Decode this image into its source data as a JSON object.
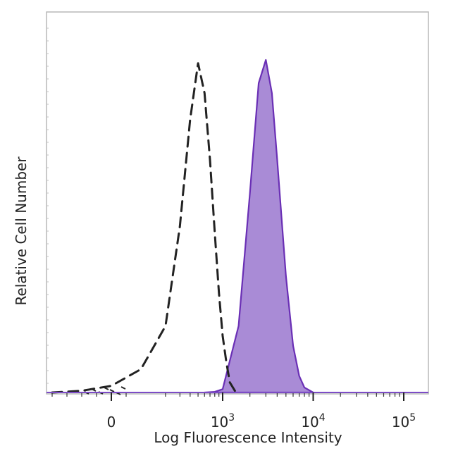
{
  "chart_data": {
    "type": "area",
    "title": "",
    "xlabel": "Log Fluorescence Intensity",
    "ylabel": "Relative Cell Number",
    "x_scale": "biexponential",
    "xlim": [
      -200,
      200000
    ],
    "ylim": [
      0,
      1
    ],
    "grid": false,
    "x_ticks": [
      {
        "value": 0,
        "base": "0",
        "exp": ""
      },
      {
        "value": 1000,
        "base": "10",
        "exp": "3"
      },
      {
        "value": 10000,
        "base": "10",
        "exp": "4"
      },
      {
        "value": 100000,
        "base": "10",
        "exp": "5"
      }
    ],
    "series": [
      {
        "style": "dashed",
        "color": "#222222",
        "fill": "none",
        "x": [
          -200,
          -100,
          0,
          100,
          200,
          300,
          400,
          500,
          600,
          700,
          800,
          900,
          1000,
          1100,
          1200,
          1400
        ],
        "y": [
          0,
          0.005,
          0.02,
          0.07,
          0.2,
          0.5,
          0.82,
          0.99,
          0.9,
          0.7,
          0.48,
          0.3,
          0.17,
          0.09,
          0.03,
          0
        ]
      },
      {
        "style": "solid",
        "color": "#6a2fb5",
        "fill": "#a98bd6",
        "x": [
          600,
          800,
          1000,
          1500,
          2000,
          2500,
          3000,
          3500,
          4000,
          5000,
          6000,
          7000,
          8000,
          10000
        ],
        "y": [
          0,
          0.002,
          0.01,
          0.2,
          0.6,
          0.93,
          1.0,
          0.9,
          0.7,
          0.35,
          0.14,
          0.05,
          0.015,
          0
        ]
      }
    ],
    "colors": {
      "control": "#222222",
      "stained_line": "#6a2fb5",
      "stained_fill": "#a98bd6"
    }
  }
}
